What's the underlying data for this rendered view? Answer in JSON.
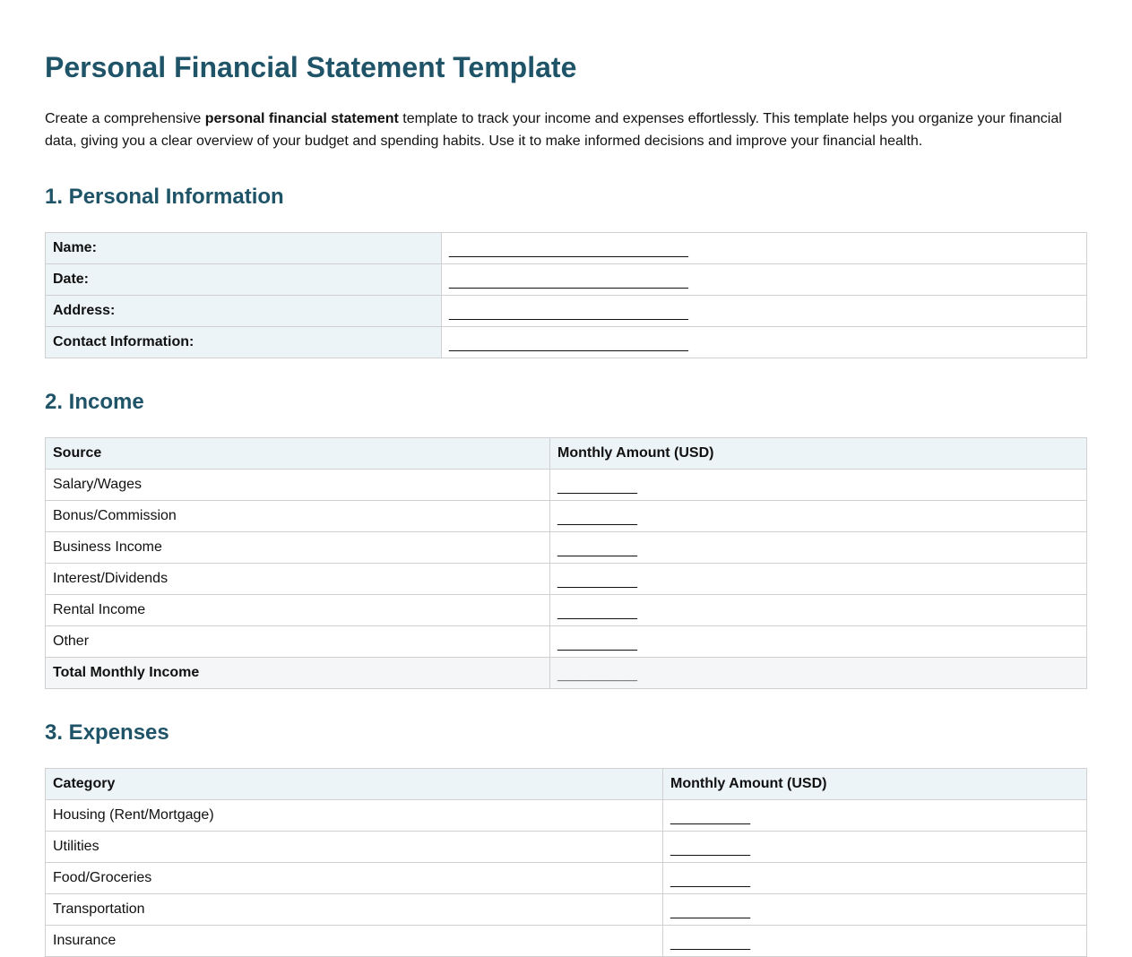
{
  "title": "Personal Financial Statement Template",
  "intro": {
    "before": "Create a comprehensive ",
    "bold": "personal financial statement",
    "after": " template to track your income and expenses effortlessly. This template helps you organize your financial data, giving you a clear overview of your budget and spending habits. Use it to make informed decisions and improve your financial health."
  },
  "personal": {
    "heading": "1. Personal Information",
    "rows": [
      {
        "label": "Name:",
        "value": "______________________________"
      },
      {
        "label": "Date:",
        "value": "______________________________"
      },
      {
        "label": "Address:",
        "value": "______________________________"
      },
      {
        "label": "Contact Information:",
        "value": "______________________________"
      }
    ]
  },
  "income": {
    "heading": "2. Income",
    "columns": [
      "Source",
      "Monthly Amount (USD)"
    ],
    "rows": [
      {
        "label": "Salary/Wages",
        "value": "__________"
      },
      {
        "label": "Bonus/Commission",
        "value": "__________"
      },
      {
        "label": "Business Income",
        "value": "__________"
      },
      {
        "label": "Interest/Dividends",
        "value": "__________"
      },
      {
        "label": "Rental Income",
        "value": "__________"
      },
      {
        "label": "Other",
        "value": "__________"
      }
    ],
    "total": {
      "label": "Total Monthly Income",
      "value": "__________"
    }
  },
  "expenses": {
    "heading": "3. Expenses",
    "columns": [
      "Category",
      "Monthly Amount (USD)"
    ],
    "rows": [
      {
        "label": "Housing (Rent/Mortgage)",
        "value": "__________"
      },
      {
        "label": "Utilities",
        "value": "__________"
      },
      {
        "label": "Food/Groceries",
        "value": "__________"
      },
      {
        "label": "Transportation",
        "value": "__________"
      },
      {
        "label": "Insurance",
        "value": "__________"
      }
    ]
  }
}
